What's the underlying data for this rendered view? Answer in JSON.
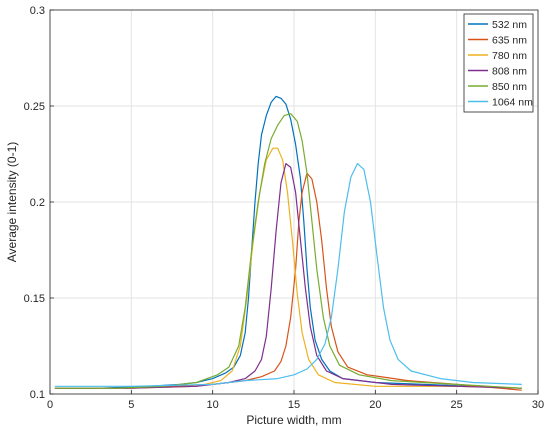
{
  "chart_data": {
    "type": "line",
    "title": "",
    "xlabel": "Picture width, mm",
    "ylabel": "Average intensity (0-1)",
    "xlim": [
      0,
      30
    ],
    "ylim": [
      0.1,
      0.3
    ],
    "x_ticks": [
      "0",
      "5",
      "10",
      "15",
      "20",
      "25",
      "30"
    ],
    "y_ticks": [
      "0.1",
      "0.15",
      "0.2",
      "0.25",
      "0.3"
    ],
    "grid": true,
    "legend_position": "top-right",
    "series": [
      {
        "name": "532 nm",
        "color": "#0072BD",
        "points": [
          [
            0.3,
            0.103
          ],
          [
            3,
            0.103
          ],
          [
            6,
            0.104
          ],
          [
            8,
            0.105
          ],
          [
            9,
            0.106
          ],
          [
            10,
            0.108
          ],
          [
            10.8,
            0.111
          ],
          [
            11.3,
            0.114
          ],
          [
            11.7,
            0.12
          ],
          [
            12,
            0.132
          ],
          [
            12.2,
            0.15
          ],
          [
            12.4,
            0.175
          ],
          [
            12.6,
            0.2
          ],
          [
            12.8,
            0.22
          ],
          [
            13,
            0.235
          ],
          [
            13.3,
            0.245
          ],
          [
            13.6,
            0.252
          ],
          [
            13.9,
            0.255
          ],
          [
            14.2,
            0.254
          ],
          [
            14.5,
            0.251
          ],
          [
            14.8,
            0.243
          ],
          [
            15.1,
            0.23
          ],
          [
            15.4,
            0.212
          ],
          [
            15.6,
            0.19
          ],
          [
            15.8,
            0.165
          ],
          [
            16,
            0.145
          ],
          [
            16.3,
            0.128
          ],
          [
            16.7,
            0.118
          ],
          [
            17.2,
            0.112
          ],
          [
            18,
            0.108
          ],
          [
            20,
            0.106
          ],
          [
            23,
            0.105
          ],
          [
            26,
            0.104
          ],
          [
            29,
            0.103
          ]
        ]
      },
      {
        "name": "635 nm",
        "color": "#D95319",
        "points": [
          [
            0.3,
            0.103
          ],
          [
            5,
            0.103
          ],
          [
            10,
            0.105
          ],
          [
            12,
            0.107
          ],
          [
            13,
            0.109
          ],
          [
            13.8,
            0.112
          ],
          [
            14.2,
            0.117
          ],
          [
            14.5,
            0.125
          ],
          [
            14.8,
            0.14
          ],
          [
            15.1,
            0.165
          ],
          [
            15.3,
            0.19
          ],
          [
            15.5,
            0.205
          ],
          [
            15.8,
            0.215
          ],
          [
            16.1,
            0.212
          ],
          [
            16.4,
            0.2
          ],
          [
            16.7,
            0.18
          ],
          [
            17,
            0.155
          ],
          [
            17.3,
            0.135
          ],
          [
            17.7,
            0.122
          ],
          [
            18.3,
            0.114
          ],
          [
            19.5,
            0.11
          ],
          [
            22,
            0.107
          ],
          [
            25,
            0.105
          ],
          [
            29,
            0.102
          ]
        ]
      },
      {
        "name": "780 nm",
        "color": "#EDB120",
        "points": [
          [
            0.3,
            0.103
          ],
          [
            5,
            0.103
          ],
          [
            9,
            0.104
          ],
          [
            10.5,
            0.107
          ],
          [
            11.2,
            0.112
          ],
          [
            11.7,
            0.125
          ],
          [
            12.1,
            0.15
          ],
          [
            12.5,
            0.18
          ],
          [
            12.9,
            0.205
          ],
          [
            13.3,
            0.222
          ],
          [
            13.7,
            0.228
          ],
          [
            14,
            0.228
          ],
          [
            14.3,
            0.222
          ],
          [
            14.6,
            0.205
          ],
          [
            14.9,
            0.18
          ],
          [
            15.2,
            0.152
          ],
          [
            15.5,
            0.132
          ],
          [
            15.9,
            0.118
          ],
          [
            16.5,
            0.11
          ],
          [
            17.5,
            0.106
          ],
          [
            20,
            0.104
          ],
          [
            25,
            0.104
          ],
          [
            29,
            0.103
          ]
        ]
      },
      {
        "name": "808 nm",
        "color": "#7E2F8E",
        "points": [
          [
            0.3,
            0.103
          ],
          [
            5,
            0.103
          ],
          [
            9,
            0.104
          ],
          [
            11,
            0.106
          ],
          [
            12,
            0.108
          ],
          [
            12.6,
            0.112
          ],
          [
            13,
            0.118
          ],
          [
            13.3,
            0.13
          ],
          [
            13.6,
            0.155
          ],
          [
            13.9,
            0.185
          ],
          [
            14.2,
            0.21
          ],
          [
            14.5,
            0.22
          ],
          [
            14.8,
            0.218
          ],
          [
            15.1,
            0.205
          ],
          [
            15.4,
            0.18
          ],
          [
            15.7,
            0.155
          ],
          [
            16,
            0.135
          ],
          [
            16.4,
            0.12
          ],
          [
            17,
            0.112
          ],
          [
            18,
            0.108
          ],
          [
            21,
            0.105
          ],
          [
            25,
            0.104
          ],
          [
            29,
            0.103
          ]
        ]
      },
      {
        "name": "850 nm",
        "color": "#77AC30",
        "points": [
          [
            0.3,
            0.103
          ],
          [
            4,
            0.103
          ],
          [
            7,
            0.104
          ],
          [
            9,
            0.106
          ],
          [
            10.3,
            0.11
          ],
          [
            11,
            0.114
          ],
          [
            11.6,
            0.125
          ],
          [
            12,
            0.145
          ],
          [
            12.4,
            0.175
          ],
          [
            12.8,
            0.2
          ],
          [
            13.2,
            0.22
          ],
          [
            13.6,
            0.233
          ],
          [
            14,
            0.24
          ],
          [
            14.4,
            0.245
          ],
          [
            14.8,
            0.246
          ],
          [
            15.2,
            0.242
          ],
          [
            15.5,
            0.232
          ],
          [
            15.8,
            0.215
          ],
          [
            16.1,
            0.19
          ],
          [
            16.4,
            0.165
          ],
          [
            16.8,
            0.14
          ],
          [
            17.2,
            0.125
          ],
          [
            17.8,
            0.115
          ],
          [
            19,
            0.11
          ],
          [
            21,
            0.107
          ],
          [
            25,
            0.105
          ],
          [
            29,
            0.103
          ]
        ]
      },
      {
        "name": "1064 nm",
        "color": "#4DBEEE",
        "points": [
          [
            0.3,
            0.104
          ],
          [
            5,
            0.104
          ],
          [
            10,
            0.105
          ],
          [
            12,
            0.107
          ],
          [
            14,
            0.108
          ],
          [
            15,
            0.11
          ],
          [
            15.8,
            0.113
          ],
          [
            16.4,
            0.118
          ],
          [
            16.9,
            0.126
          ],
          [
            17.3,
            0.14
          ],
          [
            17.7,
            0.165
          ],
          [
            18.1,
            0.195
          ],
          [
            18.5,
            0.213
          ],
          [
            18.9,
            0.22
          ],
          [
            19.3,
            0.217
          ],
          [
            19.7,
            0.2
          ],
          [
            20.1,
            0.172
          ],
          [
            20.5,
            0.145
          ],
          [
            20.9,
            0.128
          ],
          [
            21.4,
            0.118
          ],
          [
            22.2,
            0.112
          ],
          [
            24,
            0.108
          ],
          [
            26,
            0.106
          ],
          [
            29,
            0.105
          ]
        ]
      }
    ]
  }
}
